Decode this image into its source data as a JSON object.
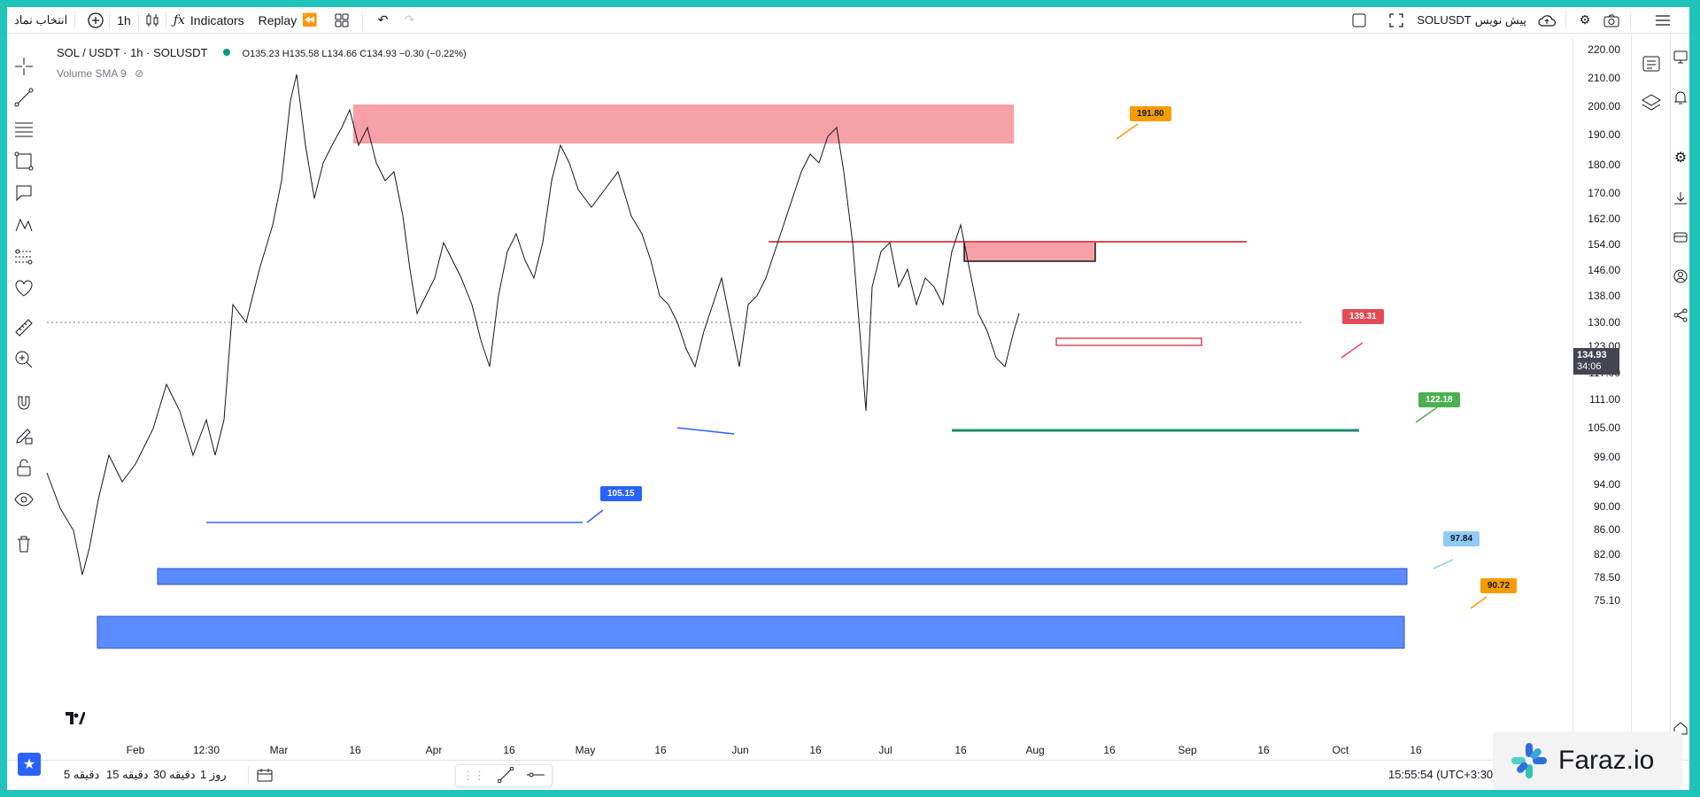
{
  "topbar": {
    "symbol_search": "انتخاب نماد",
    "interval": "1h",
    "indicators": "Indicators",
    "replay": "Replay",
    "publish_symbol": "SOLUSDT",
    "publish_label": "پیش نویس"
  },
  "legend": {
    "title": "SOL / USDT · 1h · SOLUSDT",
    "ohlc": "O135.23  H135.58  L134.66  C134.93  −0.30 (−0.22%)",
    "volume": "Volume SMA 9"
  },
  "price_scale": [
    "220.00",
    "210.00",
    "200.00",
    "190.00",
    "180.00",
    "170.00",
    "162.00",
    "154.00",
    "146.00",
    "138.00",
    "130.00",
    "123.00",
    "117.00",
    "111.00",
    "105.00",
    "99.00",
    "94.00",
    "90.00",
    "86.00",
    "82.00",
    "78.50",
    "75.10"
  ],
  "current_price": {
    "value": "134.93",
    "countdown": "34:06"
  },
  "time_scale": [
    "Feb",
    "12:30",
    "Mar",
    "16",
    "Apr",
    "16",
    "May",
    "16",
    "Jun",
    "16",
    "Jul",
    "16",
    "Aug",
    "16",
    "Sep",
    "16",
    "Oct",
    "16"
  ],
  "tags": {
    "t1": "191.80",
    "t2": "139.31",
    "t3": "122.18",
    "t4": "105.15",
    "t5": "97.84",
    "t6": "90.72"
  },
  "colors": {
    "accent": "#2962ff",
    "red_zone": "#f7a0a6",
    "blue_zone": "#5b8cff",
    "green_line": "#1e8c6e",
    "frame": "#20c4bb"
  },
  "bottombar": {
    "periods": [
      "5 دقیقه",
      "15 دقیقه",
      "30 دقیقه",
      "1 روز"
    ],
    "clock": "15:55:54 (UTC+3:30)"
  },
  "watermark": "Faraz.io"
}
